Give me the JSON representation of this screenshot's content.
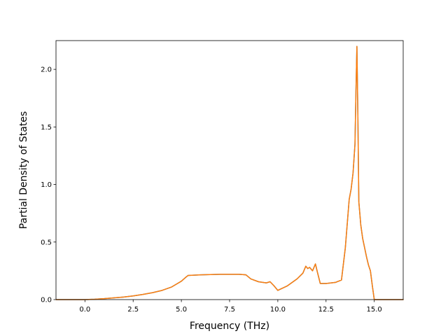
{
  "chart_data": {
    "type": "line",
    "title": "",
    "xlabel": "Frequency (THz)",
    "ylabel": "Partial Density of States",
    "xlim": [
      -1.5,
      16.5
    ],
    "ylim": [
      0.0,
      2.25
    ],
    "grid": false,
    "legend": "none",
    "x_ticks": [
      {
        "value": 0.0,
        "label": "0.0"
      },
      {
        "value": 2.5,
        "label": "2.5"
      },
      {
        "value": 5.0,
        "label": "5.0"
      },
      {
        "value": 7.5,
        "label": "7.5"
      },
      {
        "value": 10.0,
        "label": "10.0"
      },
      {
        "value": 12.5,
        "label": "12.5"
      },
      {
        "value": 15.0,
        "label": "15.0"
      }
    ],
    "y_ticks": [
      {
        "value": 0.0,
        "label": "0.0"
      },
      {
        "value": 0.5,
        "label": "0.5"
      },
      {
        "value": 1.0,
        "label": "1.0"
      },
      {
        "value": 1.5,
        "label": "1.5"
      },
      {
        "value": 2.0,
        "label": "2.0"
      }
    ],
    "series": [
      {
        "color": "#1f77b4",
        "x": [
          -1.5,
          0.0,
          0.5,
          1.0,
          1.5,
          2.0,
          2.5,
          3.0,
          3.5,
          4.0,
          4.5,
          5.0,
          5.2,
          5.35,
          6.0,
          7.0,
          8.0,
          8.35,
          8.6,
          9.0,
          9.4,
          9.6,
          9.8,
          10.0,
          10.5,
          11.0,
          11.3,
          11.45,
          11.55,
          11.65,
          11.8,
          11.95,
          12.05,
          12.2,
          12.5,
          13.0,
          13.3,
          13.5,
          13.7,
          13.8,
          13.9,
          14.0,
          14.05,
          14.1,
          14.15,
          14.2,
          14.3,
          14.4,
          14.5,
          14.6,
          14.7,
          14.8,
          14.9,
          15.0,
          15.5,
          16.5
        ],
        "y": [
          0.0,
          0.0,
          0.003,
          0.008,
          0.015,
          0.022,
          0.032,
          0.045,
          0.06,
          0.08,
          0.11,
          0.16,
          0.19,
          0.21,
          0.215,
          0.22,
          0.22,
          0.215,
          0.18,
          0.155,
          0.145,
          0.155,
          0.12,
          0.08,
          0.12,
          0.18,
          0.23,
          0.29,
          0.27,
          0.28,
          0.25,
          0.31,
          0.24,
          0.14,
          0.14,
          0.15,
          0.17,
          0.45,
          0.87,
          0.96,
          1.1,
          1.35,
          1.8,
          2.2,
          1.6,
          0.85,
          0.65,
          0.53,
          0.45,
          0.37,
          0.3,
          0.25,
          0.12,
          0.0,
          0.0,
          0.0
        ]
      },
      {
        "color": "#ff7f0e",
        "x": [
          -1.5,
          0.0,
          0.5,
          1.0,
          1.5,
          2.0,
          2.5,
          3.0,
          3.5,
          4.0,
          4.5,
          5.0,
          5.2,
          5.35,
          6.0,
          7.0,
          8.0,
          8.35,
          8.6,
          9.0,
          9.4,
          9.6,
          9.8,
          10.0,
          10.5,
          11.0,
          11.3,
          11.45,
          11.55,
          11.65,
          11.8,
          11.95,
          12.05,
          12.2,
          12.5,
          13.0,
          13.3,
          13.5,
          13.7,
          13.8,
          13.9,
          14.0,
          14.05,
          14.1,
          14.15,
          14.2,
          14.3,
          14.4,
          14.5,
          14.6,
          14.7,
          14.8,
          14.9,
          15.0,
          15.5,
          16.5
        ],
        "y": [
          0.0,
          0.0,
          0.003,
          0.008,
          0.015,
          0.022,
          0.032,
          0.045,
          0.06,
          0.08,
          0.11,
          0.16,
          0.19,
          0.21,
          0.215,
          0.22,
          0.22,
          0.215,
          0.18,
          0.155,
          0.145,
          0.155,
          0.12,
          0.08,
          0.12,
          0.18,
          0.23,
          0.29,
          0.27,
          0.28,
          0.25,
          0.31,
          0.24,
          0.14,
          0.14,
          0.15,
          0.17,
          0.45,
          0.87,
          0.96,
          1.1,
          1.35,
          1.8,
          2.2,
          1.6,
          0.85,
          0.65,
          0.53,
          0.45,
          0.37,
          0.3,
          0.25,
          0.12,
          0.0,
          0.0,
          0.0
        ]
      }
    ]
  }
}
